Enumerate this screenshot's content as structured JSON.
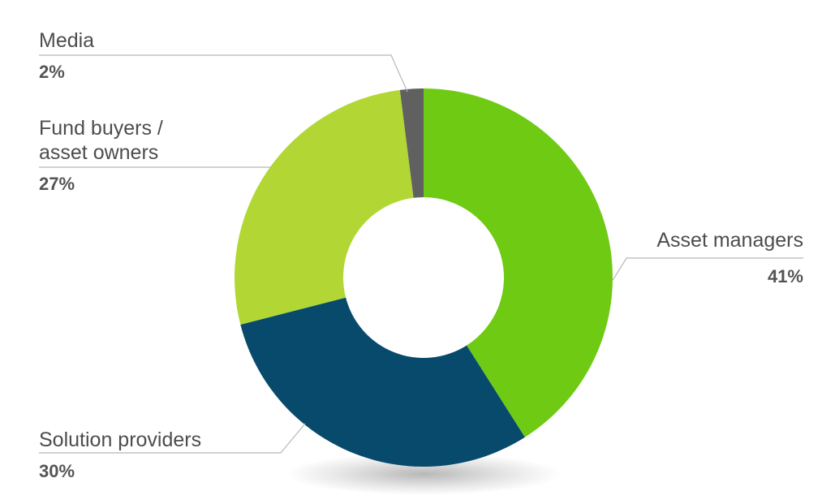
{
  "chart_data": {
    "type": "pie",
    "donut": true,
    "slices": [
      {
        "label": "Asset managers",
        "value": 41,
        "display": "41%",
        "color": "#6fca14"
      },
      {
        "label": "Solution providers",
        "value": 30,
        "display": "30%",
        "color": "#084a6b"
      },
      {
        "label": "Fund buyers / asset owners",
        "label_lines": [
          "Fund buyers /",
          "asset owners"
        ],
        "value": 27,
        "display": "27%",
        "color": "#b2d734"
      },
      {
        "label": "Media",
        "value": 2,
        "display": "2%",
        "color": "#606060"
      }
    ],
    "start": "12 o'clock",
    "direction": "clockwise",
    "legend": "none"
  }
}
